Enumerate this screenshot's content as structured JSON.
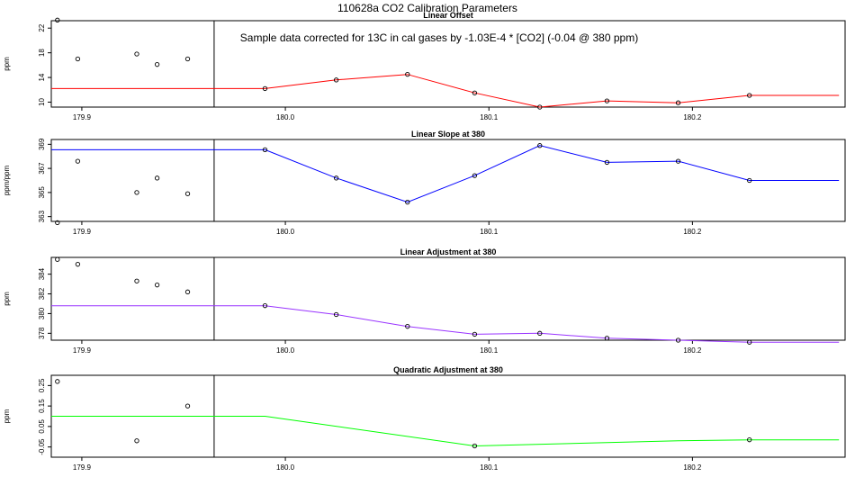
{
  "figure": {
    "title": "110628a   CO2 Calibration Parameters"
  },
  "chart_data": [
    {
      "type": "line",
      "title": "Linear Offset",
      "annotation": "Sample data corrected for 13C in cal gases by -1.03E-4 * [CO2] (-0.04 @ 380 ppm)",
      "xlabel": "",
      "ylabel": "ppm",
      "xlim": [
        179.885,
        180.275
      ],
      "ylim": [
        9.2,
        23.2
      ],
      "yticks": [
        10,
        14,
        18,
        22
      ],
      "xticks": [
        179.9,
        180.0,
        180.1,
        180.2
      ],
      "xticklabels": [
        "179.9",
        "180.0",
        "180.1",
        "180.2"
      ],
      "color": "#ff0000",
      "vline_x": 179.965,
      "line_x": [
        179.885,
        179.99,
        180.025,
        180.06,
        180.093,
        180.125,
        180.158,
        180.193,
        180.228,
        180.272
      ],
      "line_y": [
        12.2,
        12.2,
        13.6,
        14.5,
        11.5,
        9.2,
        10.2,
        9.9,
        11.1,
        11.1
      ],
      "markers_x": [
        179.888,
        179.898,
        179.927,
        179.937,
        179.952,
        179.99,
        180.025,
        180.06,
        180.093,
        180.125,
        180.158,
        180.193,
        180.228
      ],
      "markers_y": [
        23.3,
        17.0,
        17.8,
        16.1,
        17.0,
        12.2,
        13.6,
        14.5,
        11.5,
        9.2,
        10.2,
        9.9,
        11.1
      ]
    },
    {
      "type": "line",
      "title": "Linear Slope at 380",
      "xlabel": "",
      "ylabel": "ppm/ppm",
      "xlim": [
        179.885,
        180.275
      ],
      "ylim": [
        362.6,
        369.4
      ],
      "yticks": [
        363,
        365,
        367,
        369
      ],
      "xticks": [
        179.9,
        180.0,
        180.1,
        180.2
      ],
      "xticklabels": [
        "179.9",
        "180.0",
        "180.1",
        "180.2"
      ],
      "color": "#0000ff",
      "vline_x": 179.965,
      "line_x": [
        179.885,
        179.99,
        180.025,
        180.06,
        180.093,
        180.125,
        180.158,
        180.193,
        180.228,
        180.272
      ],
      "line_y": [
        368.55,
        368.55,
        366.2,
        364.2,
        366.4,
        368.9,
        367.5,
        367.6,
        366.0,
        366.0
      ],
      "markers_x": [
        179.888,
        179.898,
        179.927,
        179.937,
        179.952,
        179.99,
        180.025,
        180.06,
        180.093,
        180.125,
        180.158,
        180.193,
        180.228
      ],
      "markers_y": [
        362.5,
        367.6,
        365.0,
        366.2,
        364.9,
        368.55,
        366.2,
        364.2,
        366.4,
        368.9,
        367.5,
        367.6,
        366.0
      ]
    },
    {
      "type": "line",
      "title": "Linear Adjustment at 380",
      "xlabel": "",
      "ylabel": "ppm",
      "xlim": [
        179.885,
        180.275
      ],
      "ylim": [
        377.3,
        385.7
      ],
      "yticks": [
        378,
        380,
        382,
        384
      ],
      "xticks": [
        179.9,
        180.0,
        180.1,
        180.2
      ],
      "xticklabels": [
        "179.9",
        "180.0",
        "180.1",
        "180.2"
      ],
      "color": "#9933ff",
      "vline_x": 179.965,
      "line_x": [
        179.885,
        179.99,
        180.025,
        180.06,
        180.093,
        180.125,
        180.158,
        180.193,
        180.228,
        180.272
      ],
      "line_y": [
        380.8,
        380.8,
        379.9,
        378.7,
        377.9,
        378.0,
        377.5,
        377.3,
        377.1,
        377.1
      ],
      "markers_x": [
        179.888,
        179.898,
        179.927,
        179.937,
        179.952,
        179.99,
        180.025,
        180.06,
        180.093,
        180.125,
        180.158,
        180.193,
        180.228
      ],
      "markers_y": [
        385.5,
        385.0,
        383.3,
        382.9,
        382.2,
        380.8,
        379.9,
        378.7,
        377.9,
        378.0,
        377.5,
        377.3,
        377.1
      ]
    },
    {
      "type": "line",
      "title": "Quadratic Adjustment at 380",
      "xlabel": "",
      "ylabel": "ppm",
      "xlim": [
        179.885,
        180.275
      ],
      "ylim": [
        -0.1,
        0.3
      ],
      "yticks": [
        -0.05,
        0.05,
        0.15,
        0.25
      ],
      "yticklabels": [
        "-0.05",
        "0.05",
        "0.15",
        "0.25"
      ],
      "xticks": [
        179.9,
        180.0,
        180.1,
        180.2
      ],
      "xticklabels": [
        "179.9",
        "180.0",
        "180.1",
        "180.2"
      ],
      "color": "#00ff00",
      "vline_x": 179.965,
      "line_x": [
        179.885,
        179.99,
        180.093,
        180.193,
        180.228,
        180.272
      ],
      "line_y": [
        0.1,
        0.1,
        -0.045,
        -0.02,
        -0.015,
        -0.015
      ],
      "markers_x": [
        179.888,
        179.927,
        179.952,
        180.093,
        180.228
      ],
      "markers_y": [
        0.27,
        -0.02,
        0.15,
        -0.045,
        -0.015
      ]
    }
  ]
}
